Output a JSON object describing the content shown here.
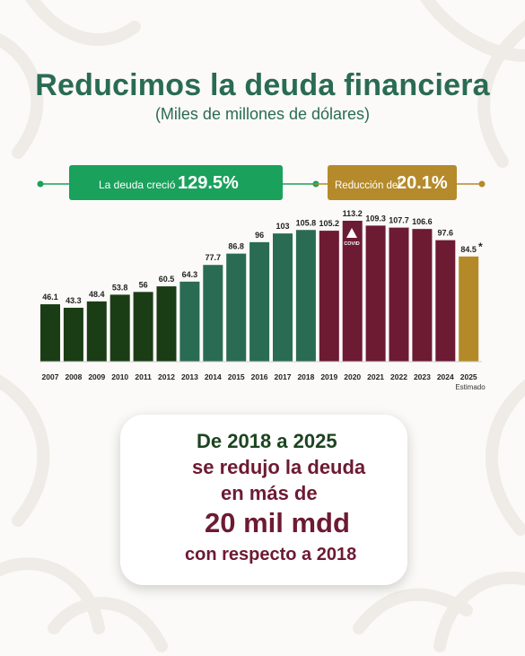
{
  "header": {
    "title": "Reducimos la deuda financiera",
    "subtitle": "(Miles de millones de dólares)"
  },
  "banners": {
    "growth_text": "La deuda creció",
    "growth_value": "129.5%",
    "reduction_text": "Reducción del",
    "reduction_value": "20.1%"
  },
  "colors": {
    "dark_green": "#1b3d15",
    "teal": "#2a6b53",
    "maroon": "#6d1a33",
    "gold": "#b48a28",
    "banner_green": "#1aa15c",
    "banner_gold": "#b58a2b"
  },
  "chart_data": {
    "type": "bar",
    "categories": [
      "2007",
      "2008",
      "2009",
      "2010",
      "2011",
      "2012",
      "2013",
      "2014",
      "2015",
      "2016",
      "2017",
      "2018",
      "2019",
      "2020",
      "2021",
      "2022",
      "2023",
      "2024",
      "2025"
    ],
    "values": [
      46.1,
      43.3,
      48.4,
      53.8,
      56,
      60.5,
      64.3,
      77.7,
      86.8,
      96,
      103,
      105.8,
      105.2,
      113.2,
      109.3,
      107.7,
      106.6,
      97.6,
      84.5
    ],
    "value_labels": [
      "46.1",
      "43.3",
      "48.4",
      "53.8",
      "56",
      "60.5",
      "64.3",
      "77.7",
      "86.8",
      "96",
      "103",
      "105.8",
      "105.2",
      "113.2",
      "109.3",
      "107.7",
      "106.6",
      "97.6",
      "84.5"
    ],
    "bar_colors": [
      "#1b3d15",
      "#1b3d15",
      "#1b3d15",
      "#1b3d15",
      "#1b3d15",
      "#1b3d15",
      "#2a6b53",
      "#2a6b53",
      "#2a6b53",
      "#2a6b53",
      "#2a6b53",
      "#2a6b53",
      "#6d1a33",
      "#6d1a33",
      "#6d1a33",
      "#6d1a33",
      "#6d1a33",
      "#6d1a33",
      "#b48a28"
    ],
    "ylim": [
      0,
      115
    ],
    "annotations": {
      "covid_label": "COVID",
      "estimate_marker": "*",
      "estimate_label": "Estimado"
    }
  },
  "callout": {
    "line1": "De 2018 a 2025",
    "line2": "se redujo la deuda",
    "line3": "en más de",
    "line4": "20 mil mdd",
    "line5": "con respecto a 2018"
  }
}
